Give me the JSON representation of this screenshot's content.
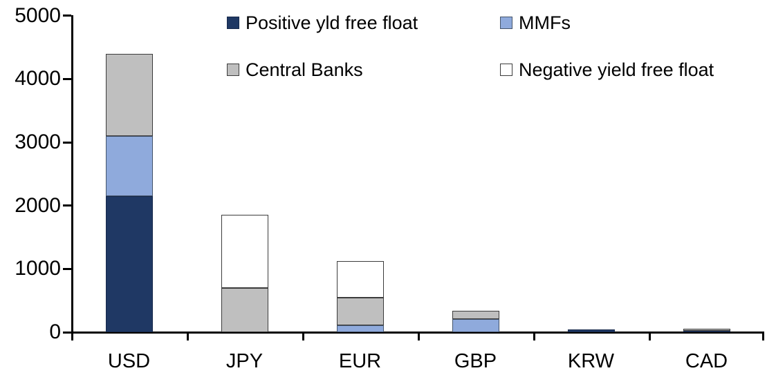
{
  "chart_data": {
    "type": "bar",
    "stacked": true,
    "title": "",
    "xlabel": "",
    "ylabel": "",
    "categories": [
      "USD",
      "JPY",
      "EUR",
      "GBP",
      "KRW",
      "CAD"
    ],
    "series": [
      {
        "name": "Positive yld free float",
        "color": "#1F3864",
        "border": "#16294B",
        "values": [
          2150,
          0,
          0,
          0,
          45,
          25
        ]
      },
      {
        "name": "MMFs",
        "color": "#8FAADC",
        "border": "#44546A",
        "values": [
          950,
          0,
          110,
          210,
          0,
          0
        ]
      },
      {
        "name": "Central Banks",
        "color": "#BFBFBF",
        "border": "#3B3B3B",
        "values": [
          1300,
          700,
          440,
          125,
          0,
          30
        ]
      },
      {
        "name": "Negative yield free float",
        "color": "#FFFFFF",
        "border": "#3B3B3B",
        "values": [
          0,
          1150,
          570,
          0,
          0,
          0
        ]
      }
    ],
    "totals": {
      "USD": 4400,
      "JPY": 1850,
      "EUR": 1120,
      "GBP": 335,
      "KRW": 45,
      "CAD": 55
    },
    "ylim": [
      0,
      5000
    ],
    "ytick_interval": 1000,
    "yticks": [
      "0",
      "1000",
      "2000",
      "3000",
      "4000",
      "5000"
    ],
    "grid": false,
    "legend_position": "top",
    "axis_color": "#000000"
  }
}
